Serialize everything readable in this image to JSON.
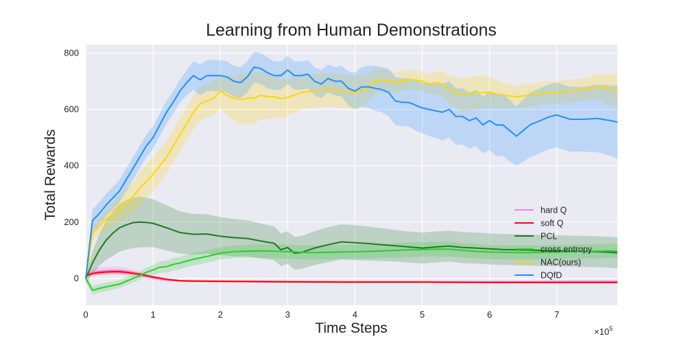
{
  "chart_data": {
    "type": "line",
    "title": "Learning from Human Demonstrations",
    "xlabel": "Time Steps",
    "ylabel": "Total Rewards",
    "x_multiplier_label": "×10",
    "x_multiplier_exp": "5",
    "xlim": [
      0,
      7.9
    ],
    "ylim": [
      -95,
      830
    ],
    "xticks": [
      0,
      1,
      2,
      3,
      4,
      5,
      6,
      7
    ],
    "yticks": [
      0,
      200,
      400,
      600,
      800
    ],
    "grid": true,
    "legend_position": "lower-right",
    "series": [
      {
        "name": "hard Q",
        "color": "#ee82ee",
        "x": [
          0,
          0.1,
          0.2,
          0.3,
          0.4,
          0.5,
          0.6,
          0.7,
          0.8,
          0.9,
          1.0,
          1.2,
          1.5,
          2.0,
          2.5,
          3.0,
          4.0,
          5.0,
          6.0,
          7.0,
          7.9
        ],
        "y": [
          12,
          22,
          26,
          28,
          29,
          28,
          25,
          20,
          14,
          8,
          2,
          -6,
          -9,
          -10,
          -10,
          -11,
          -12,
          -12,
          -12,
          -11,
          -10
        ],
        "band": [
          8,
          12,
          14,
          14,
          14,
          14,
          14,
          12,
          10,
          8,
          7,
          5,
          4,
          4,
          4,
          4,
          4,
          4,
          4,
          4,
          4
        ]
      },
      {
        "name": "soft Q",
        "color": "#ff0000",
        "x": [
          0,
          0.1,
          0.2,
          0.3,
          0.4,
          0.5,
          0.6,
          0.7,
          0.8,
          0.9,
          1.0,
          1.2,
          1.4,
          1.6,
          2.0,
          2.5,
          3.0,
          4.0,
          5.0,
          6.0,
          7.0,
          7.9
        ],
        "y": [
          10,
          18,
          21,
          23,
          24,
          24,
          22,
          19,
          15,
          10,
          5,
          -3,
          -8,
          -9,
          -10,
          -11,
          -12,
          -13,
          -13,
          -14,
          -14,
          -14
        ],
        "band": [
          6,
          8,
          8,
          8,
          8,
          8,
          8,
          7,
          6,
          5,
          5,
          4,
          3,
          3,
          3,
          3,
          3,
          3,
          3,
          3,
          3,
          3
        ]
      },
      {
        "name": "PCL",
        "color": "#1f7a1f",
        "x": [
          0,
          0.1,
          0.2,
          0.3,
          0.4,
          0.5,
          0.6,
          0.7,
          0.8,
          0.9,
          1.0,
          1.2,
          1.4,
          1.6,
          1.8,
          2.0,
          2.2,
          2.4,
          2.6,
          2.8,
          2.9,
          3.0,
          3.1,
          3.2,
          3.4,
          3.6,
          3.8,
          4.0,
          4.2,
          4.4,
          4.6,
          4.8,
          5.0,
          5.2,
          5.4,
          5.6,
          5.8,
          6.0,
          6.2,
          6.4,
          6.6,
          6.8,
          7.0,
          7.2,
          7.4,
          7.6,
          7.8,
          7.9
        ],
        "y": [
          0,
          55,
          100,
          135,
          160,
          180,
          190,
          198,
          200,
          199,
          196,
          180,
          163,
          157,
          158,
          150,
          145,
          142,
          133,
          125,
          102,
          110,
          90,
          92,
          108,
          120,
          130,
          127,
          124,
          120,
          116,
          112,
          108,
          112,
          115,
          110,
          108,
          105,
          103,
          102,
          101,
          99,
          98,
          97,
          96,
          95,
          93,
          91
        ],
        "band": [
          20,
          40,
          55,
          70,
          80,
          85,
          88,
          90,
          90,
          88,
          85,
          80,
          75,
          72,
          70,
          68,
          66,
          64,
          62,
          60,
          58,
          58,
          58,
          58,
          60,
          62,
          62,
          62,
          60,
          58,
          56,
          55,
          55,
          55,
          55,
          55,
          55,
          55,
          55,
          55,
          55,
          55,
          55,
          55,
          55,
          55,
          55,
          55
        ]
      },
      {
        "name": "cross entropy",
        "color": "#2ecc2e",
        "x": [
          0,
          0.1,
          0.2,
          0.3,
          0.4,
          0.5,
          0.6,
          0.7,
          0.8,
          0.9,
          1.0,
          1.1,
          1.2,
          1.3,
          1.4,
          1.5,
          1.6,
          1.8,
          2.0,
          2.2,
          2.4,
          2.6,
          2.8,
          3.0,
          3.2,
          3.4,
          3.6,
          3.8,
          4.0,
          4.2,
          4.4,
          4.6,
          4.8,
          5.0,
          5.2,
          5.4,
          5.6,
          5.8,
          6.0,
          6.2,
          6.4,
          6.6,
          6.8,
          7.0,
          7.2,
          7.4,
          7.6,
          7.8,
          7.9
        ],
        "y": [
          0,
          -42,
          -35,
          -30,
          -25,
          -20,
          -10,
          0,
          10,
          22,
          30,
          40,
          42,
          50,
          55,
          62,
          68,
          78,
          90,
          95,
          97,
          98,
          97,
          95,
          93,
          92,
          93,
          94,
          95,
          96,
          98,
          100,
          102,
          103,
          104,
          104,
          100,
          96,
          94,
          93,
          92,
          92,
          93,
          94,
          95,
          96,
          97,
          98,
          97
        ],
        "band": [
          10,
          15,
          15,
          15,
          14,
          14,
          14,
          14,
          15,
          16,
          18,
          20,
          22,
          22,
          22,
          22,
          22,
          22,
          22,
          22,
          22,
          24,
          25,
          25,
          25,
          25,
          25,
          25,
          25,
          25,
          25,
          26,
          26,
          26,
          26,
          26,
          25,
          25,
          25,
          25,
          25,
          25,
          25,
          25,
          25,
          25,
          25,
          25,
          25
        ]
      },
      {
        "name": "NAC(ours)",
        "color": "#ffd700",
        "x": [
          0,
          0.1,
          0.2,
          0.3,
          0.4,
          0.5,
          0.6,
          0.7,
          0.8,
          0.9,
          1.0,
          1.1,
          1.2,
          1.3,
          1.4,
          1.5,
          1.6,
          1.7,
          1.8,
          1.9,
          2.0,
          2.1,
          2.2,
          2.3,
          2.4,
          2.5,
          2.6,
          2.7,
          2.8,
          2.9,
          3.0,
          3.2,
          3.4,
          3.6,
          3.8,
          4.0,
          4.1,
          4.2,
          4.3,
          4.4,
          4.5,
          4.6,
          4.7,
          4.8,
          4.9,
          5.0,
          5.1,
          5.2,
          5.3,
          5.4,
          5.5,
          5.6,
          5.8,
          6.0,
          6.2,
          6.4,
          6.6,
          6.8,
          7.0,
          7.2,
          7.4,
          7.6,
          7.8,
          7.9
        ],
        "y": [
          0,
          160,
          185,
          210,
          230,
          250,
          270,
          290,
          320,
          345,
          370,
          400,
          430,
          470,
          510,
          550,
          590,
          620,
          630,
          640,
          665,
          650,
          640,
          635,
          640,
          640,
          650,
          645,
          645,
          638,
          642,
          660,
          665,
          670,
          665,
          660,
          665,
          680,
          700,
          705,
          700,
          695,
          700,
          705,
          705,
          700,
          690,
          695,
          690,
          670,
          660,
          650,
          660,
          660,
          650,
          645,
          650,
          660,
          660,
          665,
          670,
          680,
          670,
          665
        ],
        "band": [
          10,
          25,
          30,
          35,
          40,
          45,
          50,
          55,
          60,
          60,
          60,
          60,
          60,
          60,
          60,
          60,
          60,
          60,
          60,
          60,
          60,
          70,
          80,
          90,
          90,
          90,
          85,
          80,
          75,
          70,
          65,
          60,
          60,
          60,
          60,
          60,
          55,
          50,
          45,
          40,
          38,
          36,
          35,
          35,
          35,
          35,
          35,
          40,
          45,
          50,
          55,
          60,
          60,
          55,
          45,
          40,
          40,
          40,
          40,
          40,
          40,
          45,
          55,
          60
        ]
      },
      {
        "name": "DQfD",
        "color": "#1e90ff",
        "x": [
          0,
          0.1,
          0.2,
          0.3,
          0.4,
          0.5,
          0.6,
          0.7,
          0.8,
          0.9,
          1.0,
          1.1,
          1.2,
          1.3,
          1.4,
          1.5,
          1.6,
          1.7,
          1.8,
          1.9,
          2.0,
          2.1,
          2.2,
          2.3,
          2.4,
          2.5,
          2.6,
          2.7,
          2.8,
          2.9,
          3.0,
          3.1,
          3.2,
          3.3,
          3.4,
          3.5,
          3.6,
          3.7,
          3.8,
          3.9,
          4.0,
          4.1,
          4.2,
          4.3,
          4.4,
          4.5,
          4.6,
          4.7,
          4.8,
          4.9,
          5.0,
          5.1,
          5.2,
          5.3,
          5.4,
          5.5,
          5.6,
          5.7,
          5.8,
          5.9,
          6.0,
          6.1,
          6.2,
          6.3,
          6.4,
          6.5,
          6.6,
          6.7,
          6.8,
          6.9,
          7.0,
          7.2,
          7.4,
          7.6,
          7.8,
          7.9
        ],
        "y": [
          0,
          205,
          230,
          260,
          285,
          310,
          350,
          390,
          430,
          470,
          500,
          545,
          590,
          625,
          665,
          695,
          720,
          705,
          720,
          720,
          720,
          715,
          700,
          695,
          715,
          750,
          745,
          730,
          720,
          720,
          740,
          720,
          720,
          725,
          700,
          690,
          710,
          700,
          700,
          675,
          665,
          680,
          680,
          675,
          670,
          660,
          630,
          625,
          625,
          615,
          605,
          600,
          595,
          590,
          600,
          575,
          575,
          560,
          570,
          545,
          560,
          545,
          545,
          525,
          505,
          525,
          545,
          555,
          565,
          575,
          580,
          565,
          565,
          568,
          560,
          555
        ],
        "band": [
          10,
          40,
          40,
          40,
          40,
          40,
          40,
          40,
          40,
          40,
          40,
          40,
          40,
          40,
          40,
          45,
          50,
          55,
          55,
          55,
          55,
          55,
          55,
          55,
          55,
          55,
          55,
          55,
          50,
          50,
          50,
          50,
          50,
          50,
          50,
          50,
          50,
          50,
          55,
          60,
          65,
          70,
          75,
          80,
          80,
          85,
          85,
          85,
          85,
          90,
          90,
          95,
          95,
          100,
          100,
          100,
          100,
          100,
          100,
          100,
          105,
          110,
          110,
          110,
          105,
          110,
          115,
          115,
          115,
          115,
          115,
          115,
          115,
          120,
          125,
          130
        ]
      }
    ]
  }
}
